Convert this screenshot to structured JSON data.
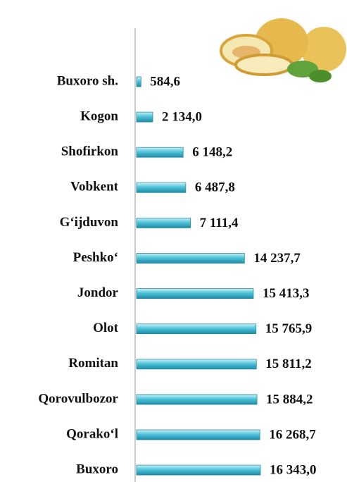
{
  "chart_data": {
    "type": "bar",
    "orientation": "horizontal",
    "categories": [
      "Buxoro sh.",
      "Kogon",
      "Shofirkon",
      "Vobkent",
      "G‘ijduvon",
      "Peshko‘",
      "Jondor",
      "Olot",
      "Romitan",
      "Qorovulbozor",
      "Qorako‘l",
      "Buxoro"
    ],
    "values": [
      584.6,
      2134.0,
      6148.2,
      6487.8,
      7111.4,
      14237.7,
      15413.3,
      15765.9,
      15811.2,
      15884.2,
      16268.7,
      16343.0
    ],
    "value_labels": [
      "584,6",
      "2 134,0",
      "6 148,2",
      "6 487,8",
      "7 111,4",
      "14 237,7",
      "15 413,3",
      "15 765,9",
      "15 811,2",
      "15 884,2",
      "16 268,7",
      "16 343,0"
    ],
    "color": "#4fc3d9"
  }
}
